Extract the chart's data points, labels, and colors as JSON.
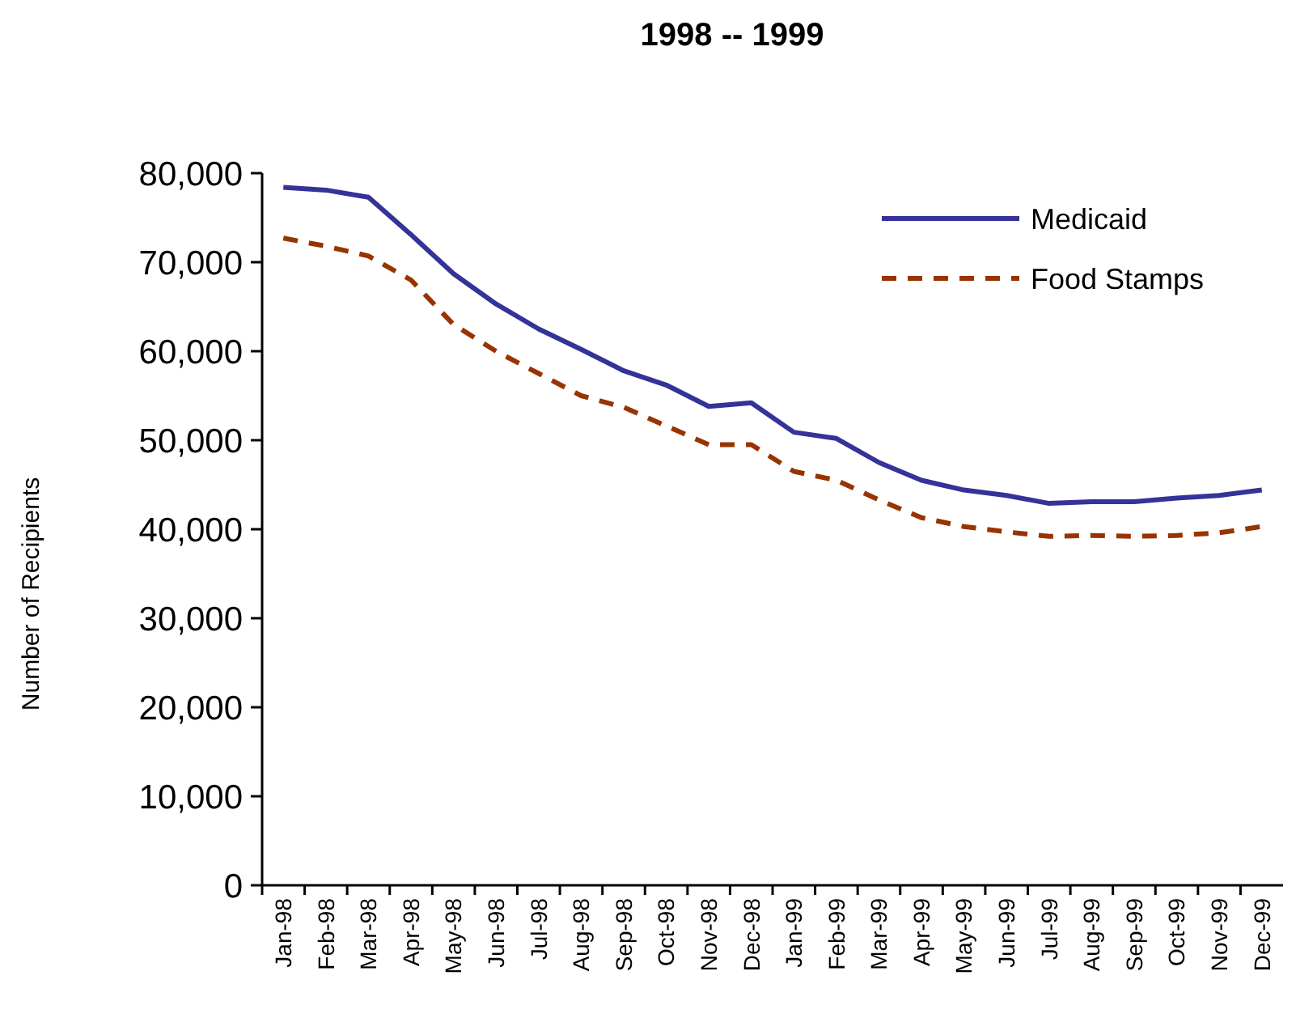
{
  "chart_data": {
    "type": "line",
    "title": "1998 -- 1999",
    "ylabel": "Number of Recipients",
    "categories": [
      "Jan-98",
      "Feb-98",
      "Mar-98",
      "Apr-98",
      "May-98",
      "Jun-98",
      "Jul-98",
      "Aug-98",
      "Sep-98",
      "Oct-98",
      "Nov-98",
      "Dec-98",
      "Jan-99",
      "Feb-99",
      "Mar-99",
      "Apr-99",
      "May-99",
      "Jun-99",
      "Jul-99",
      "Aug-99",
      "Sep-99",
      "Oct-99",
      "Nov-99",
      "Dec-99"
    ],
    "series": [
      {
        "name": "Medicaid",
        "color": "#333399",
        "line_style": "solid",
        "values": [
          78400,
          78100,
          77300,
          73100,
          68700,
          65300,
          62500,
          60200,
          57800,
          56200,
          53800,
          54200,
          50900,
          50200,
          47500,
          45500,
          44400,
          43800,
          42900,
          43100,
          43100,
          43500,
          43800,
          44400
        ]
      },
      {
        "name": "Food Stamps",
        "color": "#993300",
        "line_style": "dashed",
        "values": [
          72700,
          71800,
          70700,
          68000,
          63000,
          60000,
          57500,
          55000,
          53700,
          51600,
          49500,
          49500,
          46500,
          45500,
          43300,
          41300,
          40300,
          39700,
          39200,
          39300,
          39200,
          39300,
          39600,
          40300
        ]
      }
    ],
    "ylim": [
      0,
      80000
    ],
    "yticks": [
      {
        "value": 0,
        "label": "0"
      },
      {
        "value": 10000,
        "label": "10,000"
      },
      {
        "value": 20000,
        "label": "20,000"
      },
      {
        "value": 30000,
        "label": "30,000"
      },
      {
        "value": 40000,
        "label": "40,000"
      },
      {
        "value": 50000,
        "label": "50,000"
      },
      {
        "value": 60000,
        "label": "60,000"
      },
      {
        "value": 70000,
        "label": "70,000"
      },
      {
        "value": 80000,
        "label": "80,000"
      }
    ],
    "legend": "top right",
    "grid": false
  }
}
